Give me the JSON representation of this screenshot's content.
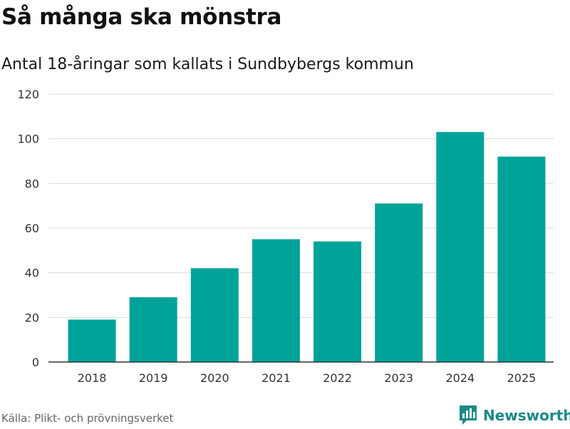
{
  "header": {
    "title": "Så många ska mönstra",
    "subtitle": "Antal 18-åringar som kallats i Sundbybergs kommun"
  },
  "chart_data": {
    "type": "bar",
    "title": "Så många ska mönstra",
    "subtitle": "Antal 18-åringar som kallats i Sundbybergs kommun",
    "categories": [
      "2018",
      "2019",
      "2020",
      "2021",
      "2022",
      "2023",
      "2024",
      "2025"
    ],
    "values": [
      19,
      29,
      42,
      55,
      54,
      71,
      103,
      92
    ],
    "xlabel": "",
    "ylabel": "",
    "ylim": [
      0,
      120
    ],
    "yticks": [
      0,
      20,
      40,
      60,
      80,
      100,
      120
    ],
    "grid": true,
    "bar_color": "#00a39a"
  },
  "footer": {
    "source": "Källa: Plikt- och prövningsverket",
    "brand": "Newsworthy",
    "brand_icon": "newsworthy-logo-icon",
    "brand_color": "#1a8a86"
  }
}
